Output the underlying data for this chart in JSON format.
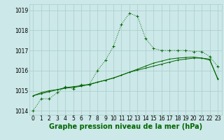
{
  "bg_color": "#cce8e8",
  "grid_color": "#aacccc",
  "line1_color": "#006600",
  "line2_color": "#006600",
  "line3_color": "#006600",
  "hours": [
    0,
    1,
    2,
    3,
    4,
    5,
    6,
    7,
    8,
    9,
    10,
    11,
    12,
    13,
    14,
    15,
    16,
    17,
    18,
    19,
    20,
    21,
    22,
    23
  ],
  "line1_values": [
    1014.0,
    1014.6,
    1014.6,
    1014.9,
    1015.2,
    1015.1,
    1015.3,
    1015.3,
    1016.0,
    1016.5,
    1017.2,
    1018.3,
    1018.85,
    1018.7,
    1017.6,
    1017.1,
    1017.0,
    1017.0,
    1017.0,
    1017.0,
    1016.95,
    1016.95,
    1016.7,
    1016.2
  ],
  "line2_values": [
    1014.75,
    1014.9,
    1015.0,
    1015.05,
    1015.15,
    1015.2,
    1015.25,
    1015.3,
    1015.42,
    1015.52,
    1015.63,
    1015.77,
    1015.92,
    1016.07,
    1016.22,
    1016.37,
    1016.47,
    1016.57,
    1016.62,
    1016.65,
    1016.67,
    1016.62,
    1016.52,
    1015.6
  ],
  "line3_values": [
    1014.75,
    1014.85,
    1014.95,
    1015.05,
    1015.12,
    1015.17,
    1015.22,
    1015.32,
    1015.42,
    1015.52,
    1015.63,
    1015.77,
    1015.92,
    1016.02,
    1016.12,
    1016.22,
    1016.32,
    1016.42,
    1016.52,
    1016.57,
    1016.62,
    1016.62,
    1016.57,
    1015.57
  ],
  "xlabel": "Graphe pression niveau de la mer (hPa)",
  "ylim": [
    1013.8,
    1019.3
  ],
  "xlim": [
    -0.5,
    23.5
  ],
  "yticks": [
    1014,
    1015,
    1016,
    1017,
    1018,
    1019
  ],
  "xticks": [
    0,
    1,
    2,
    3,
    4,
    5,
    6,
    7,
    8,
    9,
    10,
    11,
    12,
    13,
    14,
    15,
    16,
    17,
    18,
    19,
    20,
    21,
    22,
    23
  ],
  "tick_fontsize": 5.5,
  "xlabel_fontsize": 7,
  "marker": "+"
}
